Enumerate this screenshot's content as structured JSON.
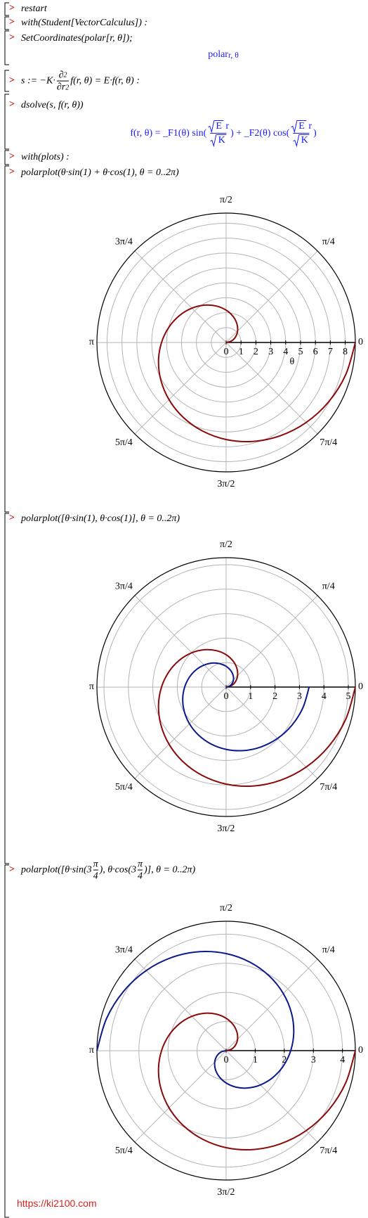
{
  "worksheet": {
    "prompt": ">",
    "lines": [
      {
        "kind": "input",
        "segments": [
          "restart"
        ]
      },
      {
        "kind": "input",
        "segments": [
          "with(Student[VectorCalculus]) :"
        ]
      },
      {
        "kind": "input",
        "segments": [
          "SetCoordinates(polar[r, θ]);"
        ]
      },
      {
        "kind": "output",
        "segments": [
          "polar",
          {
            "sub": [
              "r, θ"
            ]
          }
        ]
      },
      {
        "kind": "input",
        "segments": [
          "s := −K·",
          {
            "num": [
              "∂",
              {
                "sup": [
                  "2"
                ]
              }
            ],
            "den": [
              "∂r",
              {
                "sup": [
                  "2"
                ]
              }
            ]
          },
          "f(r, θ) = E·f(r, θ) :"
        ]
      },
      {
        "kind": "input",
        "segments": [
          "dsolve(s, f(r, θ))"
        ]
      },
      {
        "kind": "output",
        "segments": [
          "f(r, θ) = _F1(θ) sin(",
          {
            "num": [
              {
                "sqrt": [
                  "E"
                ]
              },
              " r"
            ],
            "den": [
              {
                "sqrt": [
                  "K"
                ]
              }
            ]
          },
          ") + _F2(θ) cos(",
          {
            "num": [
              {
                "sqrt": [
                  "E"
                ]
              },
              " r"
            ],
            "den": [
              {
                "sqrt": [
                  "K"
                ]
              }
            ]
          },
          ")"
        ]
      },
      {
        "kind": "input",
        "segments": [
          "with(plots) :"
        ]
      },
      {
        "kind": "input",
        "segments": [
          "polarplot(θ·sin(1) + θ·cos(1), θ = 0..2π)"
        ]
      },
      {
        "kind": "input",
        "segments": [
          "polarplot([θ·sin(1), θ·cos(1)], θ = 0..2π)"
        ]
      },
      {
        "kind": "input",
        "segments": [
          "polarplot([θ·sin(3",
          {
            "num": [
              "π"
            ],
            "den": [
              "4"
            ]
          },
          "), θ·cos(3",
          {
            "num": [
              "π"
            ],
            "den": [
              "4"
            ]
          },
          ")], θ = 0..2π)"
        ]
      }
    ],
    "watermark": "https://ki2100.com"
  },
  "chart_data": [
    {
      "type": "polar",
      "theta": [
        0,
        0.262,
        0.524,
        0.785,
        1.047,
        1.309,
        1.571,
        1.833,
        2.094,
        2.356,
        2.618,
        2.88,
        3.142,
        3.403,
        3.665,
        3.927,
        4.189,
        4.451,
        4.712,
        4.974,
        5.236,
        5.498,
        5.76,
        6.021,
        6.283
      ],
      "series": [
        {
          "color": "#8b0a0a",
          "values": [
            0,
            0.362,
            0.723,
            1.085,
            1.447,
            1.809,
            2.17,
            2.532,
            2.894,
            3.256,
            3.617,
            3.979,
            4.341,
            4.703,
            5.064,
            5.426,
            5.788,
            6.15,
            6.511,
            6.873,
            7.235,
            7.597,
            7.958,
            8.32,
            8.682
          ]
        }
      ],
      "rlim": [
        0,
        8.682
      ],
      "rticks": [
        0,
        1,
        2,
        3,
        4,
        5,
        6,
        7,
        8
      ],
      "rlabel": "θ",
      "thetaticks": [
        0,
        {
          "value": 0.785,
          "label": "π/4"
        },
        {
          "value": 1.571,
          "label": "π/2"
        },
        {
          "value": 2.356,
          "label": "3π/4"
        },
        {
          "value": 3.142,
          "label": "π"
        },
        {
          "value": 3.927,
          "label": "5π/4"
        },
        {
          "value": 4.712,
          "label": "3π/2"
        },
        {
          "value": 5.498,
          "label": "7π/4"
        }
      ],
      "grid": true
    },
    {
      "type": "polar",
      "theta": [
        0,
        0.262,
        0.524,
        0.785,
        1.047,
        1.309,
        1.571,
        1.833,
        2.094,
        2.356,
        2.618,
        2.88,
        3.142,
        3.403,
        3.665,
        3.927,
        4.189,
        4.451,
        4.712,
        4.974,
        5.236,
        5.498,
        5.76,
        6.021,
        6.283
      ],
      "series": [
        {
          "color": "#8b0a0a",
          "values": [
            0,
            0.22,
            0.441,
            0.661,
            0.881,
            1.101,
            1.322,
            1.542,
            1.762,
            1.983,
            2.203,
            2.423,
            2.644,
            2.864,
            3.084,
            3.304,
            3.525,
            3.745,
            3.965,
            4.186,
            4.406,
            4.626,
            4.847,
            5.067,
            5.287
          ]
        },
        {
          "color": "#0a1a8b",
          "values": [
            0,
            0.141,
            0.283,
            0.424,
            0.566,
            0.707,
            0.849,
            0.99,
            1.132,
            1.273,
            1.415,
            1.556,
            1.697,
            1.839,
            1.98,
            2.122,
            2.263,
            2.405,
            2.546,
            2.688,
            2.829,
            2.971,
            3.112,
            3.253,
            3.395
          ]
        }
      ],
      "rlim": [
        0,
        5.287
      ],
      "rticks": [
        0,
        1,
        2,
        3,
        4,
        5
      ],
      "thetaticks": [
        0,
        {
          "value": 0.785,
          "label": "π/4"
        },
        {
          "value": 1.571,
          "label": "π/2"
        },
        {
          "value": 2.356,
          "label": "3π/4"
        },
        {
          "value": 3.142,
          "label": "π"
        },
        {
          "value": 3.927,
          "label": "5π/4"
        },
        {
          "value": 4.712,
          "label": "3π/2"
        },
        {
          "value": 5.498,
          "label": "7π/4"
        }
      ],
      "grid": true
    },
    {
      "type": "polar",
      "theta": [
        0,
        0.262,
        0.524,
        0.785,
        1.047,
        1.309,
        1.571,
        1.833,
        2.094,
        2.356,
        2.618,
        2.88,
        3.142,
        3.403,
        3.665,
        3.927,
        4.189,
        4.451,
        4.712,
        4.974,
        5.236,
        5.498,
        5.76,
        6.021,
        6.283
      ],
      "series": [
        {
          "color": "#8b0a0a",
          "values": [
            0,
            0.185,
            0.37,
            0.555,
            0.74,
            0.926,
            1.111,
            1.296,
            1.481,
            1.666,
            1.851,
            2.036,
            2.221,
            2.407,
            2.592,
            2.777,
            2.962,
            3.147,
            3.332,
            3.517,
            3.702,
            3.888,
            4.073,
            4.258,
            4.443
          ]
        },
        {
          "color": "#0a1a8b",
          "values": [
            0,
            -0.185,
            -0.37,
            -0.555,
            -0.74,
            -0.926,
            -1.111,
            -1.296,
            -1.481,
            -1.666,
            -1.851,
            -2.036,
            -2.221,
            -2.407,
            -2.592,
            -2.777,
            -2.962,
            -3.147,
            -3.332,
            -3.517,
            -3.702,
            -3.888,
            -4.073,
            -4.258,
            -4.443
          ]
        }
      ],
      "rlim": [
        0,
        4.443
      ],
      "rticks": [
        0,
        1,
        2,
        3,
        4
      ],
      "thetaticks": [
        0,
        {
          "value": 0.785,
          "label": "π/4"
        },
        {
          "value": 1.571,
          "label": "π/2"
        },
        {
          "value": 2.356,
          "label": "3π/4"
        },
        {
          "value": 3.142,
          "label": "π"
        },
        {
          "value": 3.927,
          "label": "5π/4"
        },
        {
          "value": 4.712,
          "label": "3π/2"
        },
        {
          "value": 5.498,
          "label": "7π/4"
        }
      ],
      "grid": true
    }
  ]
}
